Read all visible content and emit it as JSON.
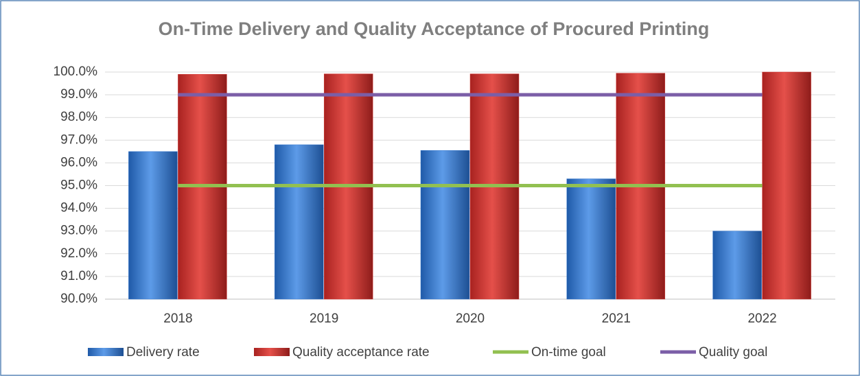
{
  "chart_data": {
    "type": "bar",
    "title": "On-Time Delivery and Quality Acceptance of Procured Printing",
    "categories": [
      "2018",
      "2019",
      "2020",
      "2021",
      "2022"
    ],
    "series": [
      {
        "name": "Delivery rate",
        "type": "bar",
        "color": "#3a7bd0",
        "values": [
          96.5,
          96.8,
          96.55,
          95.3,
          93.0
        ]
      },
      {
        "name": "Quality acceptance rate",
        "type": "bar",
        "color": "#d23a36",
        "values": [
          99.9,
          99.92,
          99.92,
          99.95,
          100.0
        ]
      },
      {
        "name": "On-time goal",
        "type": "line",
        "color": "#92c050",
        "values": [
          95,
          95,
          95,
          95,
          95
        ]
      },
      {
        "name": "Quality goal",
        "type": "line",
        "color": "#7b5ea7",
        "values": [
          99,
          99,
          99,
          99,
          99
        ]
      }
    ],
    "ylim": [
      90,
      100
    ],
    "yticks": [
      {
        "value": 90,
        "label": "90.0%"
      },
      {
        "value": 91,
        "label": "91.0%"
      },
      {
        "value": 92,
        "label": "92.0%"
      },
      {
        "value": 93,
        "label": "93.0%"
      },
      {
        "value": 94,
        "label": "94.0%"
      },
      {
        "value": 95,
        "label": "95.0%"
      },
      {
        "value": 96,
        "label": "96.0%"
      },
      {
        "value": 97,
        "label": "97.0%"
      },
      {
        "value": 98,
        "label": "98.0%"
      },
      {
        "value": 99,
        "label": "99.0%"
      },
      {
        "value": 100,
        "label": "100.0%"
      }
    ],
    "grid": true,
    "legend": "bottom"
  }
}
